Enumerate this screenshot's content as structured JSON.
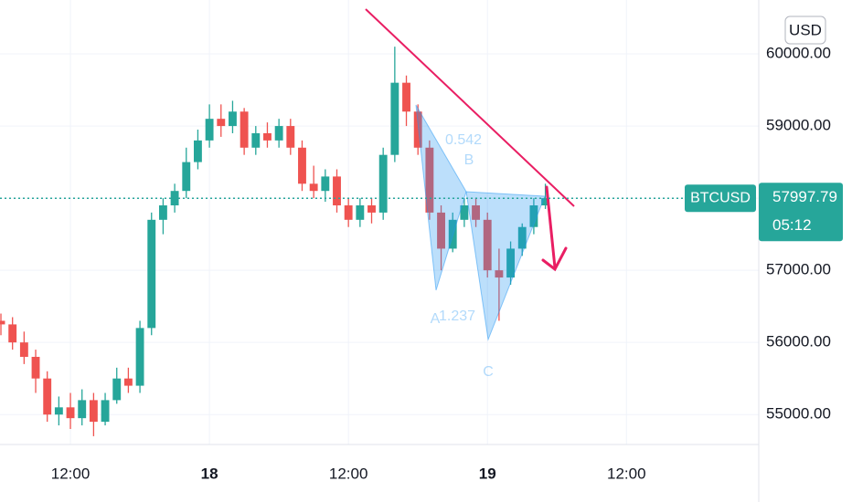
{
  "chart_data": {
    "type": "candlestick",
    "symbol": "BTCUSD",
    "currency": "USD",
    "last_price": 57997.79,
    "countdown": "05:12",
    "x": [
      6,
      7,
      8,
      9,
      10,
      11,
      12,
      13,
      14,
      15,
      16,
      17,
      18,
      19,
      20,
      21,
      22,
      23,
      24,
      25,
      26,
      27,
      28,
      29,
      30,
      31,
      32,
      33,
      34,
      35,
      36,
      37,
      38,
      39,
      40,
      41,
      42,
      43,
      44,
      45,
      46,
      47,
      48,
      49,
      50,
      51,
      52,
      53
    ],
    "open": [
      56300,
      56250,
      56000,
      55800,
      55500,
      55000,
      55100,
      54950,
      55200,
      54900,
      55200,
      55500,
      55400,
      56200,
      57700,
      57900,
      58100,
      58500,
      58800,
      59100,
      59000,
      59200,
      58700,
      58900,
      58800,
      59000,
      58700,
      58200,
      58100,
      58300,
      57900,
      57700,
      57900,
      57800,
      58600,
      59600,
      59200,
      58700,
      57800,
      57300,
      57700,
      57900,
      57700,
      57000,
      56900,
      57300,
      57600,
      57900
    ],
    "high": [
      56400,
      56350,
      56150,
      55900,
      55600,
      55250,
      55300,
      55350,
      55300,
      55300,
      55650,
      55650,
      56300,
      57800,
      58000,
      58200,
      58700,
      58950,
      59300,
      59300,
      59350,
      59250,
      59000,
      59050,
      59100,
      59100,
      58800,
      58450,
      58400,
      58400,
      58000,
      58000,
      58000,
      58700,
      60100,
      59700,
      59300,
      58800,
      57900,
      57800,
      58000,
      58000,
      57800,
      57300,
      57400,
      57650,
      58000,
      58200
    ],
    "low": [
      56100,
      55900,
      55700,
      55300,
      54900,
      54850,
      54800,
      54850,
      54700,
      54850,
      55150,
      55300,
      55300,
      56100,
      57500,
      57800,
      58000,
      58400,
      58700,
      58850,
      58900,
      58600,
      58600,
      58700,
      58700,
      58600,
      58100,
      58000,
      57950,
      57800,
      57600,
      57600,
      57650,
      57700,
      58500,
      59000,
      58600,
      57700,
      57000,
      57250,
      57600,
      57600,
      56900,
      56300,
      56800,
      57200,
      57500,
      57850
    ],
    "close": [
      56250,
      56000,
      55800,
      55500,
      55000,
      55100,
      54950,
      55200,
      54900,
      55200,
      55500,
      55400,
      56200,
      57700,
      57900,
      58100,
      58500,
      58800,
      59100,
      59000,
      59200,
      58700,
      58900,
      58800,
      59000,
      58700,
      58200,
      58100,
      58300,
      57900,
      57700,
      57900,
      57800,
      58600,
      59600,
      59200,
      58700,
      57800,
      57300,
      57700,
      57900,
      57700,
      57000,
      56900,
      57300,
      57600,
      57900,
      58000
    ],
    "up_color": "#26a69a",
    "down_color": "#ef5350",
    "xlim": [
      5.92,
      71.42
    ],
    "xticks": [
      {
        "value": 12,
        "label": "12:00"
      },
      {
        "value": 24,
        "label": "18"
      },
      {
        "value": 36,
        "label": "12:00"
      },
      {
        "value": 48,
        "label": "19"
      },
      {
        "value": 60,
        "label": "12:00"
      }
    ],
    "ylim": [
      54585,
      60747
    ],
    "yticks": [
      {
        "value": 55000,
        "label": "55000.00"
      },
      {
        "value": 56000,
        "label": "56000.00"
      },
      {
        "value": 57000,
        "label": "57000.00"
      },
      {
        "value": 58000,
        "label": "58000.00"
      },
      {
        "value": 59000,
        "label": "59000.00"
      },
      {
        "value": 60000,
        "label": "60000.00"
      }
    ],
    "grid": true,
    "annotations": [
      "0.542",
      "B",
      "1.237",
      "A",
      "C"
    ]
  }
}
